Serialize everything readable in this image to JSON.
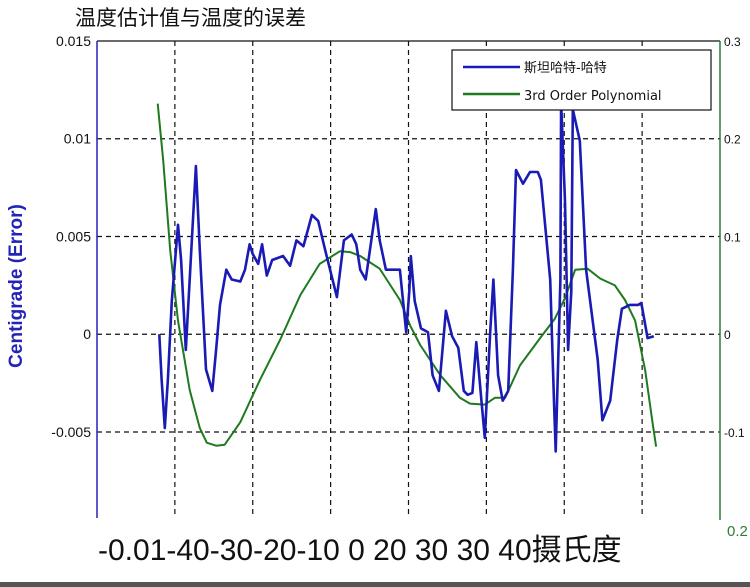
{
  "chart_data": {
    "type": "line",
    "title": "温度估计值与温度的误差",
    "xlabel": "-0.01-40-30-20-10 0 20 30 30 40摄氏度",
    "ylabel": "Centigrade (Error)",
    "xlim": [
      0,
      8
    ],
    "ylim": [
      -0.0094,
      0.015
    ],
    "y2lim": [
      -0.188,
      0.3
    ],
    "grid": true,
    "legend": "top-right",
    "y_ticks": [
      "0.015",
      "0.01",
      "0.005",
      "0",
      "-0.005"
    ],
    "y_tick_values": [
      0.015,
      0.01,
      0.005,
      0,
      -0.005
    ],
    "y2_ticks": [
      "0.3",
      "0.2",
      "0.1",
      "0",
      "-0.1"
    ],
    "y2_tick_values": [
      0.3,
      0.2,
      0.1,
      0,
      -0.1
    ],
    "y2_bottom_label": "0.2",
    "colors": {
      "series1": "#1a1ab4",
      "series2": "#1f7a1f",
      "left_axis": "#2323b8",
      "right_axis": "#2e7d32"
    },
    "series": [
      {
        "name": "斯坦哈特-哈特",
        "axis": "left",
        "x": [
          0.8,
          0.83,
          0.87,
          0.91,
          0.96,
          1.04,
          1.08,
          1.14,
          1.19,
          1.27,
          1.32,
          1.4,
          1.48,
          1.53,
          1.58,
          1.66,
          1.73,
          1.84,
          1.9,
          1.96,
          2.0,
          2.07,
          2.12,
          2.18,
          2.25,
          2.32,
          2.39,
          2.48,
          2.56,
          2.65,
          2.76,
          2.84,
          2.93,
          3.08,
          3.17,
          3.27,
          3.33,
          3.38,
          3.45,
          3.58,
          3.63,
          3.71,
          3.89,
          3.97,
          4.01,
          4.03,
          4.08,
          4.16,
          4.25,
          4.31,
          4.39,
          4.48,
          4.56,
          4.64,
          4.71,
          4.76,
          4.82,
          4.87,
          4.93,
          4.98,
          5.05,
          5.09,
          5.15,
          5.21,
          5.28,
          5.34,
          5.38,
          5.47,
          5.56,
          5.66,
          5.7,
          5.82,
          5.87,
          5.89,
          5.95,
          5.96,
          6.01,
          6.05,
          6.09,
          6.11,
          6.2,
          6.28,
          6.43,
          6.49,
          6.59,
          6.68,
          6.74,
          6.84,
          6.95,
          6.99,
          7.07,
          7.15
        ],
        "y": [
          0,
          -0.0023,
          -0.0048,
          -0.0023,
          0.0017,
          0.0056,
          0.0038,
          -0.0008,
          0.0028,
          0.0086,
          0.0043,
          -0.0018,
          -0.0029,
          -0.0008,
          0.0015,
          0.0033,
          0.0028,
          0.0027,
          0.0033,
          0.0046,
          0.0041,
          0.0036,
          0.0046,
          0.003,
          0.0038,
          0.0039,
          0.004,
          0.0035,
          0.0048,
          0.0045,
          0.0061,
          0.0058,
          0.0043,
          0.0019,
          0.0048,
          0.0051,
          0.0046,
          0.0033,
          0.0028,
          0.0064,
          0.0048,
          0.0033,
          0.0033,
          0.0001,
          0.0022,
          0.004,
          0.0017,
          0.0003,
          0.0001,
          -0.0021,
          -0.0029,
          0.0012,
          -0.0001,
          -0.0007,
          -0.0029,
          -0.0031,
          -0.003,
          -0.0004,
          -0.0031,
          -0.0053,
          0.0002,
          0.0028,
          -0.0021,
          -0.0034,
          -0.0029,
          0.0033,
          0.0084,
          0.0077,
          0.0083,
          0.0083,
          0.0079,
          0.0028,
          -0.0036,
          -0.006,
          0.0028,
          0.0119,
          0.0068,
          -0.0008,
          0.0022,
          0.0115,
          0.0099,
          0.0033,
          -0.0013,
          -0.0044,
          -0.0034,
          -0.0003,
          0.0013,
          0.0015,
          0.0015,
          0.0016,
          -0.0002,
          -0.0001
        ]
      },
      {
        "name": "3rd Order Polynomial",
        "axis": "right",
        "x": [
          0.78,
          0.85,
          0.94,
          1.04,
          1.19,
          1.32,
          1.41,
          1.53,
          1.64,
          1.84,
          2.09,
          2.35,
          2.61,
          2.86,
          3.12,
          3.25,
          3.38,
          3.63,
          3.89,
          4.02,
          4.15,
          4.41,
          4.66,
          4.79,
          4.98,
          5.11,
          5.24,
          5.43,
          5.69,
          5.88,
          6.01,
          6.14,
          6.3,
          6.46,
          6.65,
          6.78,
          6.91,
          7.04,
          7.13,
          7.18
        ],
        "y": [
          0.236,
          0.178,
          0.086,
          0.014,
          -0.057,
          -0.096,
          -0.111,
          -0.114,
          -0.113,
          -0.09,
          -0.047,
          -0.006,
          0.04,
          0.072,
          0.085,
          0.084,
          0.08,
          0.067,
          0.035,
          0.009,
          -0.011,
          -0.042,
          -0.065,
          -0.071,
          -0.072,
          -0.065,
          -0.065,
          -0.032,
          -0.004,
          0.016,
          0.037,
          0.066,
          0.067,
          0.057,
          0.05,
          0.035,
          0.014,
          -0.037,
          -0.088,
          -0.115
        ]
      }
    ]
  }
}
